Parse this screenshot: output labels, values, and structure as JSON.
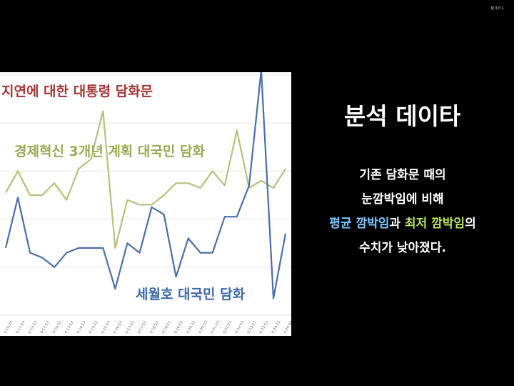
{
  "corner_text": "참가자 1",
  "chart": {
    "labels": {
      "red": "지연에 대한 대통령 담화문",
      "green": "경제혁신 3개년 계획 대국민 담화",
      "blue": "세월호 대국민 담화"
    }
  },
  "colors": {
    "green_series": "#b4c27a",
    "blue_series": "#4a6fa6",
    "red_label": "#a63333",
    "green_label": "#9aaa55",
    "blue_label": "#3d6aa8",
    "highlight_blue": "#7cc7ff",
    "highlight_green": "#b7e35a"
  },
  "right_panel": {
    "title": "분석 데이타",
    "line1": "기존 담화문 때의",
    "line2": "눈깜박임에 비해",
    "line3_a": "평균 깜박임",
    "line3_b": "과 ",
    "line3_c": "최저 깜박임",
    "line3_d": "의",
    "line4": "수치가 낮아졌다."
  },
  "chart_data": {
    "type": "line",
    "x": [
      "0:10:23",
      "0:11:53",
      "0:12:23",
      "0:12:53",
      "0:13:23",
      "0:13:53",
      "0:14:53",
      "0:15:23",
      "0:15:53",
      "0:16:53",
      "0:17:23",
      "0:17:53",
      "0:18:53",
      "0:19:23",
      "0:19:53",
      "0:20:23",
      "0:20:53",
      "0:21:23",
      "0:22:23",
      "0:22:53",
      "0:23:23",
      "0:23:53",
      "0:24:23",
      "0:24:46"
    ],
    "ylim": [
      0,
      10
    ],
    "grid": true,
    "series": [
      {
        "name": "경제혁신 3개년 계획 대국민 담화",
        "values": [
          5.1,
          6.0,
          5.0,
          5.0,
          5.5,
          4.8,
          6.1,
          6.5,
          8.5,
          2.8,
          4.8,
          4.6,
          4.6,
          5.0,
          5.5,
          5.5,
          5.3,
          6.0,
          5.4,
          7.7,
          5.3,
          5.6,
          5.3,
          6.1
        ]
      },
      {
        "name": "세월호 대국민 담화",
        "values": [
          2.8,
          4.9,
          2.6,
          2.4,
          2.0,
          2.6,
          2.8,
          2.8,
          2.8,
          1.1,
          3.0,
          2.6,
          4.5,
          4.2,
          1.6,
          3.2,
          2.6,
          2.6,
          4.1,
          4.1,
          5.4,
          10.2,
          0.7,
          3.4
        ]
      }
    ]
  }
}
